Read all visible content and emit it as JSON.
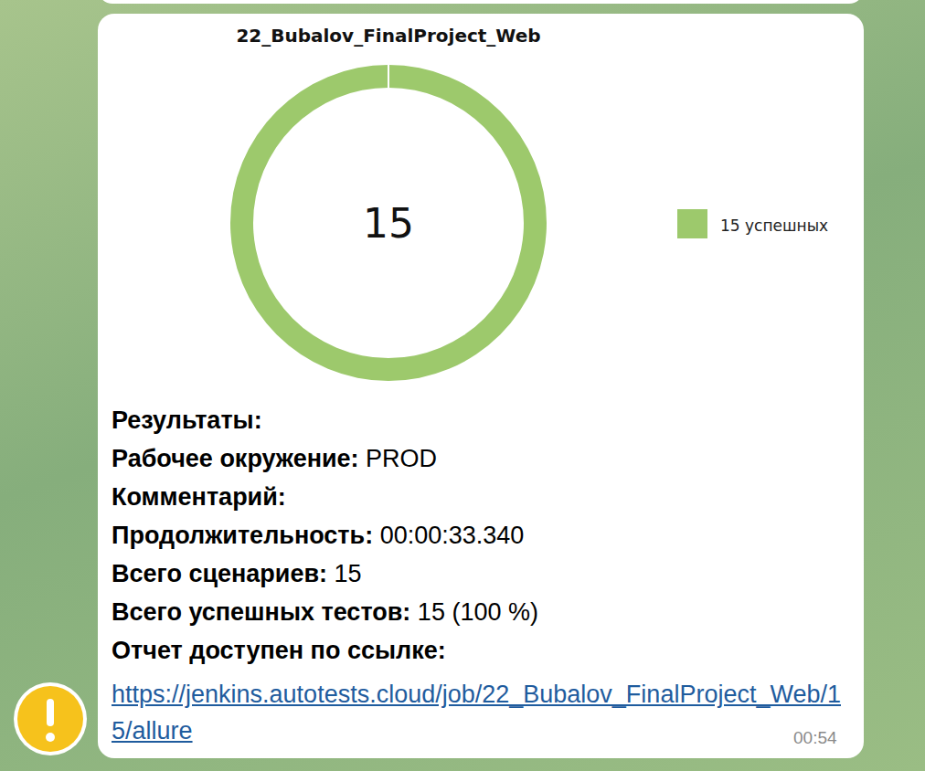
{
  "chart_data": {
    "type": "donut",
    "title": "22_Bubalov_FinalProject_Web",
    "categories": [
      "15 успешных"
    ],
    "values": [
      15
    ],
    "colors": [
      "#9dc96c"
    ],
    "total": 15,
    "legend": "right"
  },
  "message": {
    "heading": "Результаты:",
    "fields": [
      {
        "label": "Рабочее окружение:",
        "value": "PROD"
      },
      {
        "label": "Комментарий:"
      },
      {
        "label": "Продолжительность:",
        "value": "00:00:33.340"
      },
      {
        "label": "Всего сценариев:",
        "value": 15
      },
      {
        "label": "Всего успешных тестов:",
        "value": "15 (100 %)"
      }
    ],
    "link_label": "Отчет доступен по ссылке:",
    "link": "https://jenkins.autotests.cloud/job/22_Bubalov_FinalProject_Web/15/allure",
    "time": "00:54"
  }
}
